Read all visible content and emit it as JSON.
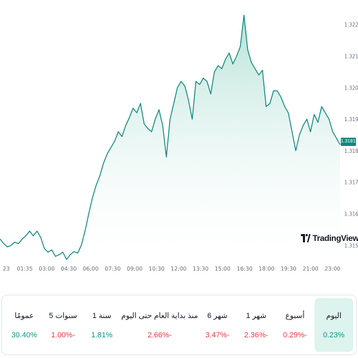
{
  "chart_data": {
    "type": "area",
    "title": "",
    "xlabel": "",
    "ylabel": "",
    "x_ticks": [
      "23",
      "01:35",
      "03:00",
      "04:30",
      "06:00",
      "07:30",
      "09:00",
      "10:30",
      "12:00",
      "13:30",
      "15:00",
      "16:30",
      "18:00",
      "19:30",
      "21:00",
      "23:00"
    ],
    "y_ticks": [
      "1.32200",
      "1.32100",
      "1.32000",
      "1.31900",
      "1.31800",
      "1.31700",
      "1.31600",
      "1.31500"
    ],
    "ylim": [
      1.3147,
      1.3223
    ],
    "grid": false,
    "current_price": "1.31819",
    "series": [
      {
        "values": [
          1.3152,
          1.31505,
          1.31495,
          1.315,
          1.3151,
          1.31505,
          1.3152,
          1.3153,
          1.31545,
          1.3153,
          1.31545,
          1.31525,
          1.3149,
          1.31478,
          1.31485,
          1.31465,
          1.3147,
          1.31478,
          1.31455,
          1.3147,
          1.3148,
          1.31475,
          1.315,
          1.31545,
          1.316,
          1.3165,
          1.3169,
          1.3172,
          1.3176,
          1.3179,
          1.3181,
          1.3183,
          1.3186,
          1.31845,
          1.3188,
          1.31905,
          1.31935,
          1.3192,
          1.3195,
          1.31885,
          1.3187,
          1.3186,
          1.319,
          1.3193,
          1.3188,
          1.3178,
          1.319,
          1.3195,
          1.32,
          1.3202,
          1.32005,
          1.3196,
          1.319,
          1.3202,
          1.3201,
          1.3203,
          1.3202,
          1.3198,
          1.3205,
          1.3207,
          1.3206,
          1.3209,
          1.3211,
          1.32075,
          1.321,
          1.3213,
          1.3223,
          1.3212,
          1.3208,
          1.3206,
          1.3204,
          1.32055,
          1.3194,
          1.3195,
          1.3199,
          1.3199,
          1.3197,
          1.3194,
          1.3192,
          1.3186,
          1.318,
          1.3185,
          1.3188,
          1.319,
          1.3186,
          1.31915,
          1.3189,
          1.3194,
          1.3192,
          1.319,
          1.3186,
          1.3184,
          1.31819
        ]
      }
    ]
  },
  "logo_text": "TradingView",
  "periods": [
    {
      "label": "اليوم",
      "value": "0.23%",
      "sign": "pos",
      "active": true
    },
    {
      "label": "أسبوع",
      "value": "0.29%-",
      "sign": "neg",
      "active": false
    },
    {
      "label": "1 شهر",
      "value": "2.36%-",
      "sign": "neg",
      "active": false
    },
    {
      "label": "6 شهر",
      "value": "3.47%-",
      "sign": "neg",
      "active": false
    },
    {
      "label": "منذ بداية العام حتى اليوم",
      "value": "2.66%-",
      "sign": "neg",
      "active": false
    },
    {
      "label": "1 سنة",
      "value": "1.81%",
      "sign": "pos",
      "active": false
    },
    {
      "label": "5 سنوات",
      "value": "1.00%-",
      "sign": "neg",
      "active": false
    },
    {
      "label": "عمومًا",
      "value": "30.40%",
      "sign": "pos",
      "active": false
    }
  ],
  "colors": {
    "line": "#0e8a7d",
    "area_top": "#a8dccf",
    "area_bottom": "#ffffff",
    "positive": "#089981",
    "negative": "#f23645",
    "active_bg": "#ddf3ee"
  }
}
